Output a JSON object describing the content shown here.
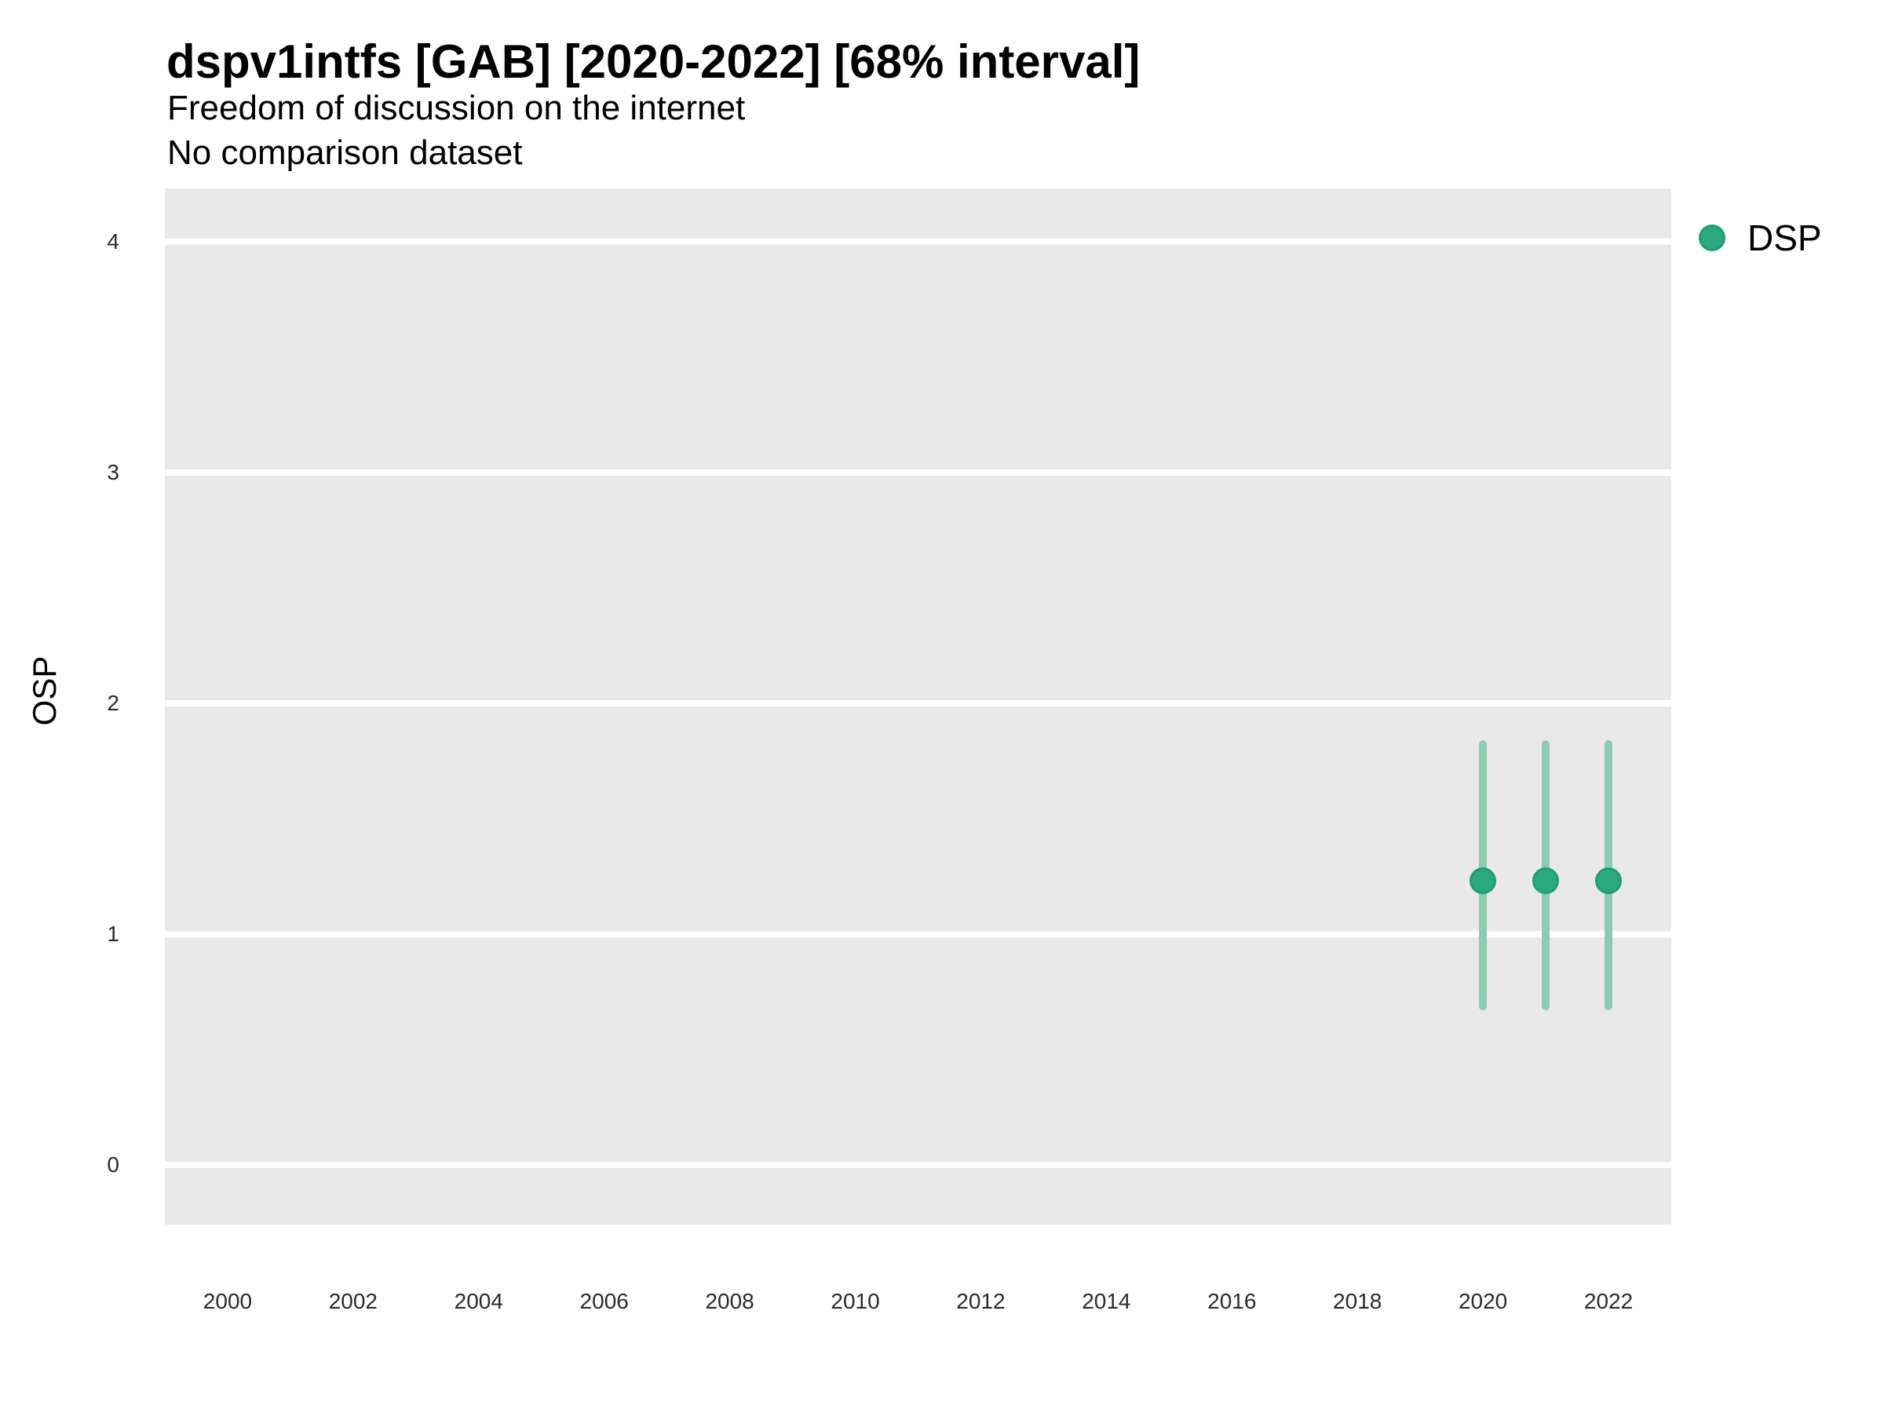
{
  "chart_data": {
    "type": "scatter",
    "title": "dspv1intfs [GAB] [2020-2022] [68% interval]",
    "subtitle": "Freedom of discussion on the internet",
    "note": "No comparison dataset",
    "xlabel": "",
    "ylabel": "OSP",
    "xlim": [
      1999,
      2023
    ],
    "ylim": [
      -0.26,
      4.23
    ],
    "xticks": [
      2000,
      2002,
      2004,
      2006,
      2008,
      2010,
      2012,
      2014,
      2016,
      2018,
      2020,
      2022
    ],
    "yticks": [
      0,
      1,
      2,
      3,
      4
    ],
    "grid": "horizontal-major-only",
    "interval_level": "68%",
    "legend": {
      "position": "right",
      "entries": [
        {
          "label": "DSP",
          "marker": "circle",
          "color": "#2aa87e"
        }
      ]
    },
    "series": [
      {
        "name": "DSP",
        "marker_color": "#2aa87e",
        "marker_stroke": "#1e9e71",
        "interval_color": "#8dcbb5",
        "x": [
          2020,
          2021,
          2022
        ],
        "y": [
          1.23,
          1.23,
          1.23
        ],
        "y_lo": [
          0.67,
          0.67,
          0.67
        ],
        "y_hi": [
          1.84,
          1.84,
          1.84
        ]
      }
    ],
    "colors": {
      "panel_bg": "#e9e9e9",
      "gridline": "#ffffff",
      "axis_text": "#2b2b2b"
    }
  }
}
